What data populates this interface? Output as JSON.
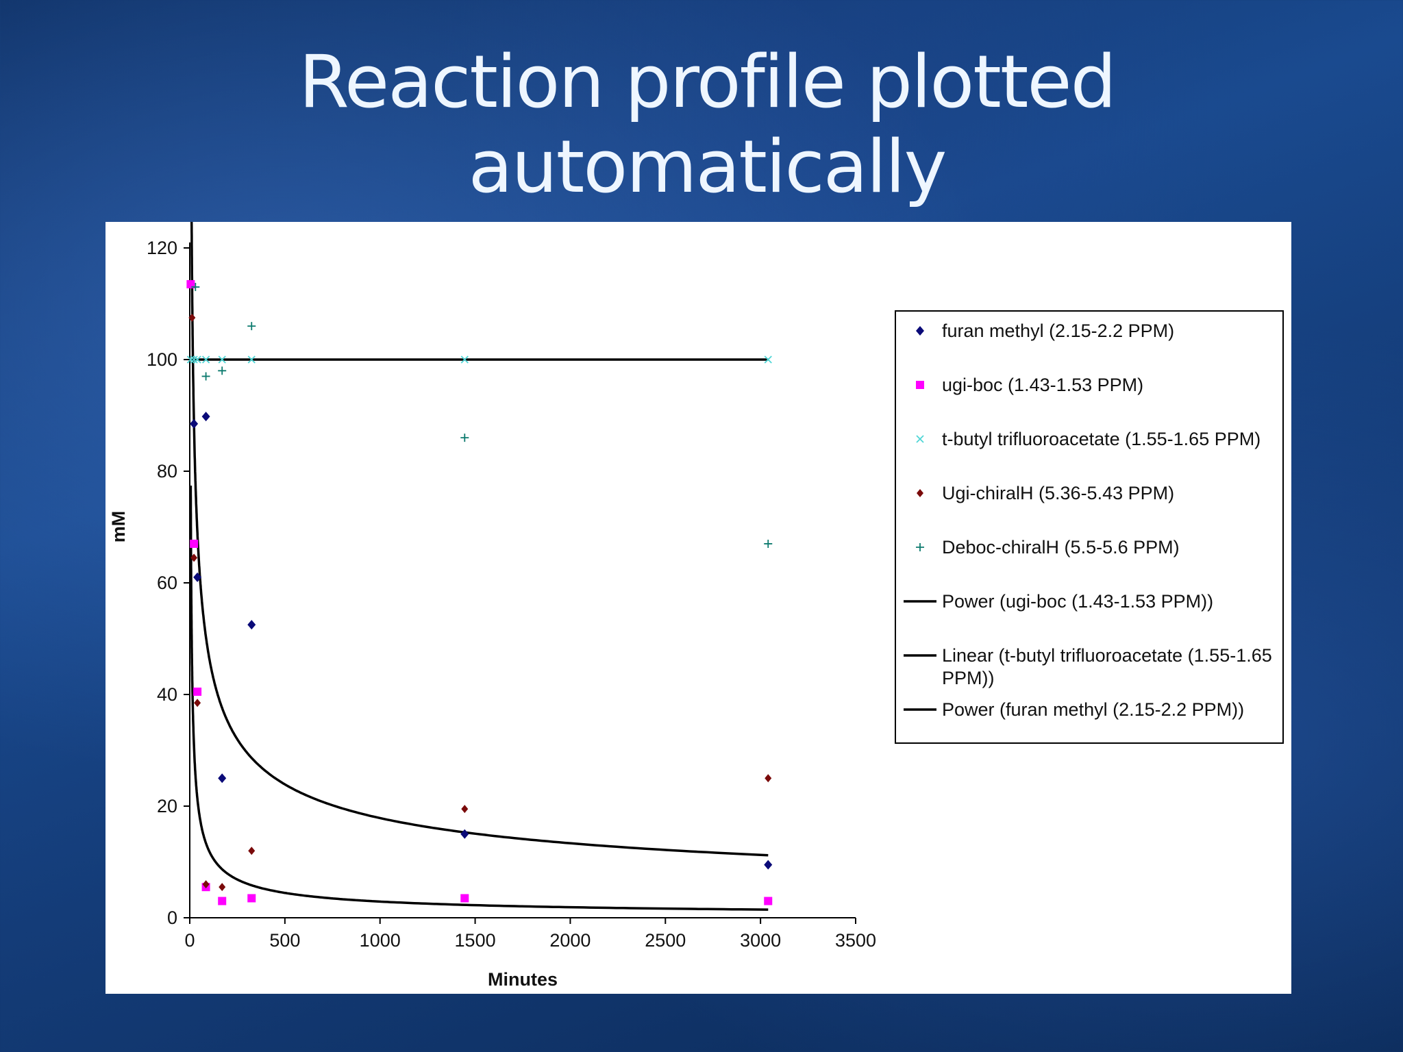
{
  "slide": {
    "title_line1": "Reaction profile plotted",
    "title_line2": "automatically"
  },
  "colors": {
    "furan": "#0a0a78",
    "ugi_boc": "#ff00ff",
    "tbutyl": "#4fd6d6",
    "ugi_chiral": "#7a0a0a",
    "deboc": "#0c7a6e",
    "trend": "#000000"
  },
  "chart_data": {
    "type": "scatter",
    "xlabel": "Minutes",
    "ylabel": "mM",
    "xlim": [
      0,
      3500
    ],
    "ylim": [
      0,
      120
    ],
    "xticks": [
      0,
      500,
      1000,
      1500,
      2000,
      2500,
      3000,
      3500
    ],
    "yticks": [
      0,
      20,
      40,
      60,
      80,
      100,
      120
    ],
    "grid": false,
    "legend_position": "right",
    "series": [
      {
        "name": "furan methyl (2.15-2.2 PPM)",
        "marker": "diamond",
        "color": "#0a0a78",
        "points": [
          [
            22,
            88.5
          ],
          [
            40,
            61
          ],
          [
            85,
            89.8
          ],
          [
            170,
            25
          ],
          [
            325,
            52.5
          ],
          [
            1445,
            15
          ],
          [
            3040,
            9.5
          ]
        ]
      },
      {
        "name": "ugi-boc (1.43-1.53 PPM)",
        "marker": "square",
        "color": "#ff00ff",
        "points": [
          [
            5,
            113.5
          ],
          [
            22,
            67
          ],
          [
            40,
            40.5
          ],
          [
            85,
            5.5
          ],
          [
            170,
            3
          ],
          [
            325,
            3.5
          ],
          [
            1445,
            3.5
          ],
          [
            3040,
            3
          ]
        ]
      },
      {
        "name": "t-butyl trifluoroacetate (1.55-1.65 PPM)",
        "marker": "x",
        "color": "#4fd6d6",
        "points": [
          [
            5,
            100
          ],
          [
            22,
            100
          ],
          [
            40,
            100
          ],
          [
            85,
            100
          ],
          [
            170,
            100
          ],
          [
            325,
            100
          ],
          [
            1445,
            100
          ],
          [
            3040,
            100
          ]
        ]
      },
      {
        "name": "Ugi-chiralH (5.36-5.43 PPM)",
        "marker": "circle",
        "color": "#7a0a0a",
        "points": [
          [
            12,
            107.5
          ],
          [
            22,
            64.5
          ],
          [
            40,
            38.5
          ],
          [
            85,
            6
          ],
          [
            170,
            5.5
          ],
          [
            325,
            12
          ],
          [
            1445,
            19.5
          ],
          [
            3040,
            25
          ]
        ]
      },
      {
        "name": "Deboc-chiralH (5.5-5.6 PPM)",
        "marker": "plus",
        "color": "#0c7a6e",
        "points": [
          [
            30,
            113
          ],
          [
            85,
            97
          ],
          [
            170,
            98
          ],
          [
            325,
            106
          ],
          [
            1445,
            86
          ],
          [
            3040,
            67
          ]
        ]
      }
    ],
    "trendlines": [
      {
        "name": "Power (ugi-boc (1.43-1.53 PPM))",
        "kind": "power",
        "a": 210,
        "b": -0.62,
        "x_range": [
          5,
          3040
        ]
      },
      {
        "name": "Linear (t-butyl trifluoroacetate (1.55-1.65 PPM))",
        "kind": "linear",
        "slope": 0,
        "intercept": 100,
        "x_range": [
          5,
          3040
        ]
      },
      {
        "name": "Power (furan methyl (2.15-2.2 PPM))",
        "kind": "power",
        "a": 325,
        "b": -0.42,
        "x_range": [
          5,
          3040
        ]
      }
    ]
  }
}
